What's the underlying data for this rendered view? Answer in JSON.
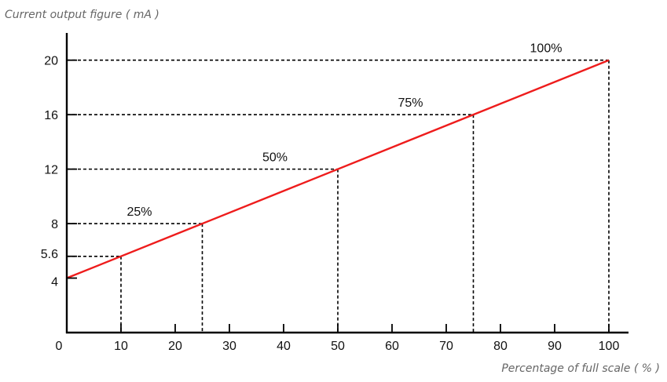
{
  "chart_data": {
    "type": "line",
    "ylabel": "Current output figure ( mA )",
    "xlabel": "Percentage of full scale ( % )",
    "x_ticks": [
      0,
      10,
      20,
      30,
      40,
      50,
      60,
      70,
      80,
      90,
      100
    ],
    "y_ticks": [
      4,
      5.6,
      8,
      12,
      16,
      20
    ],
    "xlim": [
      0,
      100
    ],
    "ylim": [
      0,
      22
    ],
    "grid": false,
    "series": [
      {
        "x": [
          0,
          100
        ],
        "y": [
          4,
          20
        ],
        "color": "#ee1c1c"
      }
    ],
    "reference_points": [
      {
        "x": 10,
        "y": 5.6,
        "label": ""
      },
      {
        "x": 25,
        "y": 8,
        "label": "25%"
      },
      {
        "x": 50,
        "y": 12,
        "label": "50%"
      },
      {
        "x": 75,
        "y": 16,
        "label": "75%"
      },
      {
        "x": 100,
        "y": 20,
        "label": "100%"
      }
    ],
    "colors": {
      "line": "#ee1c1c",
      "axis": "#000000",
      "guides": "#000000",
      "titles": "#666666"
    }
  }
}
